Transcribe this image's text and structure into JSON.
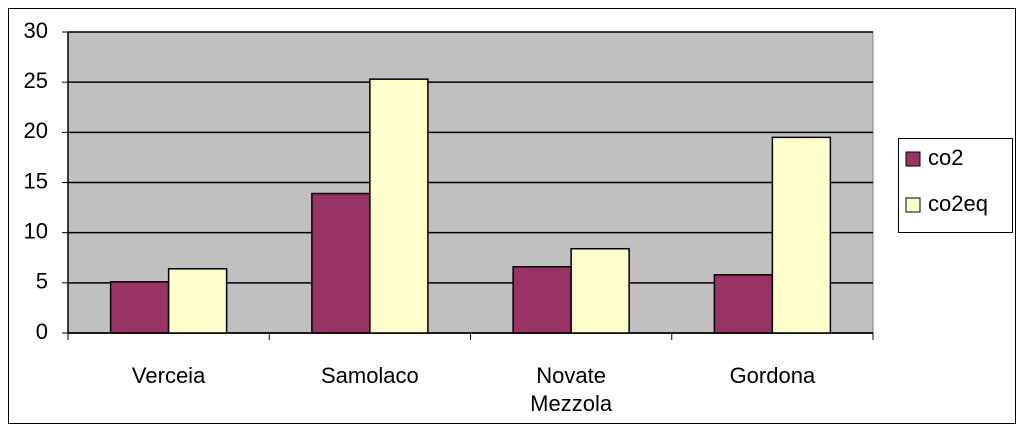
{
  "chart_data": {
    "type": "bar",
    "categories": [
      "Verceia",
      "Samolaco",
      "Novate Mezzola",
      "Gordona"
    ],
    "series": [
      {
        "name": "co2",
        "color": "#993366",
        "values": [
          5.1,
          13.9,
          6.6,
          5.8
        ]
      },
      {
        "name": "co2eq",
        "color": "#ffffcc",
        "values": [
          6.4,
          25.3,
          8.4,
          19.5
        ]
      }
    ],
    "ylim": [
      0,
      30
    ],
    "yticks": [
      0,
      5,
      10,
      15,
      20,
      25,
      30
    ],
    "grid": true,
    "legend": "right"
  }
}
